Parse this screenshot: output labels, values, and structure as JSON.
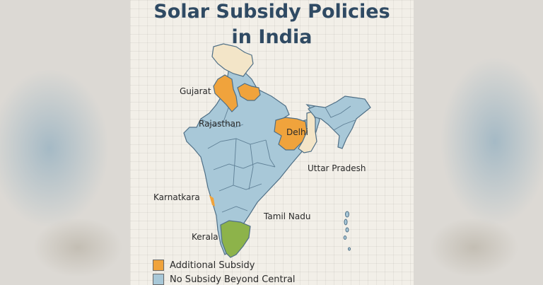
{
  "title_line1": "Solar Subsidy Policies",
  "title_line2": "in India",
  "colors": {
    "additional": "#f0a33c",
    "none": "#a8c8d8",
    "green": "#8db34a",
    "cream": "#f3e5c8",
    "border": "#4f6f86"
  },
  "labels": {
    "gujarat": "Gujarat",
    "rajasthan": "Rajasthan",
    "delhi": "Delhi",
    "uttar_pradesh": "Uttar Pradesh",
    "karnatkara": "Karnatkara",
    "tamil_nadu": "Tamil Nadu",
    "kerala": "Kerala"
  },
  "legend": {
    "additional": "Additional Subsidy",
    "none": "No Subsidy Beyond Central"
  }
}
